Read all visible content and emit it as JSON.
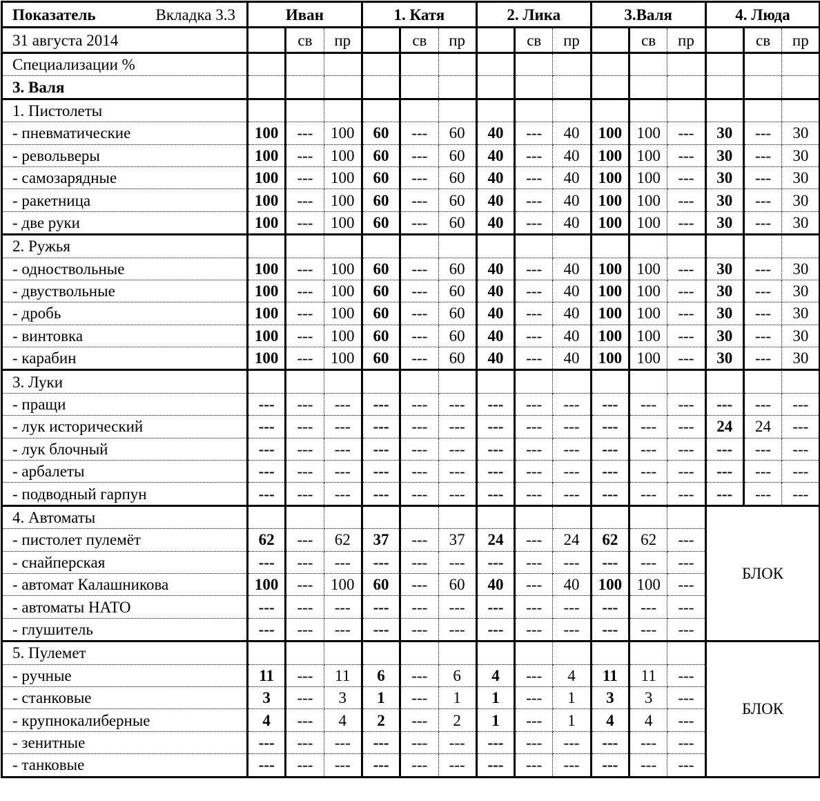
{
  "header": {
    "indicator": "Показатель",
    "tab": "Вкладка 3.3",
    "date": "31 августа 2014",
    "persons": [
      "Иван",
      "1. Катя",
      "2. Лика",
      "3.Валя",
      "4. Люда"
    ],
    "subcols": [
      "",
      "св",
      "пр"
    ]
  },
  "block_label": "БЛОК",
  "rows": [
    {
      "label": "Специализации %",
      "cells": [
        "",
        "",
        "",
        "",
        "",
        "",
        "",
        "",
        "",
        "",
        "",
        "",
        "",
        "",
        ""
      ]
    },
    {
      "label": "3. Валя",
      "bold": true,
      "cells": [
        "",
        "",
        "",
        "",
        "",
        "",
        "",
        "",
        "",
        "",
        "",
        "",
        "",
        "",
        ""
      ]
    },
    {
      "label": "1. Пистолеты",
      "group": true,
      "cells": [
        "",
        "",
        "",
        "",
        "",
        "",
        "",
        "",
        "",
        "",
        "",
        "",
        "",
        "",
        ""
      ]
    },
    {
      "label": "- пневматические",
      "cells": [
        "100",
        "---",
        "100",
        "60",
        "---",
        "60",
        "40",
        "---",
        "40",
        "100",
        "100",
        "---",
        "30",
        "---",
        "30"
      ]
    },
    {
      "label": "- револьверы",
      "cells": [
        "100",
        "---",
        "100",
        "60",
        "---",
        "60",
        "40",
        "---",
        "40",
        "100",
        "100",
        "---",
        "30",
        "---",
        "30"
      ]
    },
    {
      "label": "- самозарядные",
      "cells": [
        "100",
        "---",
        "100",
        "60",
        "---",
        "60",
        "40",
        "---",
        "40",
        "100",
        "100",
        "---",
        "30",
        "---",
        "30"
      ]
    },
    {
      "label": "- ракетница",
      "cells": [
        "100",
        "---",
        "100",
        "60",
        "---",
        "60",
        "40",
        "---",
        "40",
        "100",
        "100",
        "---",
        "30",
        "---",
        "30"
      ]
    },
    {
      "label": "- две руки",
      "cells": [
        "100",
        "---",
        "100",
        "60",
        "---",
        "60",
        "40",
        "---",
        "40",
        "100",
        "100",
        "---",
        "30",
        "---",
        "30"
      ]
    },
    {
      "label": "2. Ружья",
      "group": true,
      "cells": [
        "",
        "",
        "",
        "",
        "",
        "",
        "",
        "",
        "",
        "",
        "",
        "",
        "",
        "",
        ""
      ]
    },
    {
      "label": "- одноствольные",
      "cells": [
        "100",
        "---",
        "100",
        "60",
        "---",
        "60",
        "40",
        "---",
        "40",
        "100",
        "100",
        "---",
        "30",
        "---",
        "30"
      ]
    },
    {
      "label": "- двуствольные",
      "cells": [
        "100",
        "---",
        "100",
        "60",
        "---",
        "60",
        "40",
        "---",
        "40",
        "100",
        "100",
        "---",
        "30",
        "---",
        "30"
      ]
    },
    {
      "label": "- дробь",
      "cells": [
        "100",
        "---",
        "100",
        "60",
        "---",
        "60",
        "40",
        "---",
        "40",
        "100",
        "100",
        "---",
        "30",
        "---",
        "30"
      ]
    },
    {
      "label": "- винтовка",
      "cells": [
        "100",
        "---",
        "100",
        "60",
        "---",
        "60",
        "40",
        "---",
        "40",
        "100",
        "100",
        "---",
        "30",
        "---",
        "30"
      ]
    },
    {
      "label": "- карабин",
      "cells": [
        "100",
        "---",
        "100",
        "60",
        "---",
        "60",
        "40",
        "---",
        "40",
        "100",
        "100",
        "---",
        "30",
        "---",
        "30"
      ]
    },
    {
      "label": "3. Луки",
      "group": true,
      "cells": [
        "",
        "",
        "",
        "",
        "",
        "",
        "",
        "",
        "",
        "",
        "",
        "",
        "",
        "",
        ""
      ]
    },
    {
      "label": "- пращи",
      "cells": [
        "---",
        "---",
        "---",
        "---",
        "---",
        "---",
        "---",
        "---",
        "---",
        "---",
        "---",
        "---",
        "---",
        "---",
        "---"
      ]
    },
    {
      "label": "- лук исторический",
      "cells": [
        "---",
        "---",
        "---",
        "---",
        "---",
        "---",
        "---",
        "---",
        "---",
        "---",
        "---",
        "---",
        "24",
        "24",
        "---"
      ]
    },
    {
      "label": "- лук блочный",
      "cells": [
        "---",
        "---",
        "---",
        "---",
        "---",
        "---",
        "---",
        "---",
        "---",
        "---",
        "---",
        "---",
        "---",
        "---",
        "---"
      ]
    },
    {
      "label": "- арбалеты",
      "cells": [
        "---",
        "---",
        "---",
        "---",
        "---",
        "---",
        "---",
        "---",
        "---",
        "---",
        "---",
        "---",
        "---",
        "---",
        "---"
      ]
    },
    {
      "label": "- подводный гарпун",
      "cells": [
        "---",
        "---",
        "---",
        "---",
        "---",
        "---",
        "---",
        "---",
        "---",
        "---",
        "---",
        "---",
        "---",
        "---",
        "---"
      ]
    },
    {
      "label": "4. Автоматы",
      "group": true,
      "blockStart": true,
      "cells": [
        "",
        "",
        "",
        "",
        "",
        "",
        "",
        "",
        "",
        "",
        "",
        ""
      ]
    },
    {
      "label": "- пистолет пулемёт",
      "cells": [
        "62",
        "---",
        "62",
        "37",
        "---",
        "37",
        "24",
        "---",
        "24",
        "62",
        "62",
        "---"
      ]
    },
    {
      "label": "- снайперская",
      "cells": [
        "---",
        "---",
        "---",
        "---",
        "---",
        "---",
        "---",
        "---",
        "---",
        "---",
        "---",
        "---"
      ]
    },
    {
      "label": "- автомат Калашникова",
      "cells": [
        "100",
        "---",
        "100",
        "60",
        "---",
        "60",
        "40",
        "---",
        "40",
        "100",
        "100",
        "---"
      ]
    },
    {
      "label": "- автоматы НАТО",
      "cells": [
        "---",
        "---",
        "---",
        "---",
        "---",
        "---",
        "---",
        "---",
        "---",
        "---",
        "---",
        "---"
      ]
    },
    {
      "label": "- глушитель",
      "cells": [
        "---",
        "---",
        "---",
        "---",
        "---",
        "---",
        "---",
        "---",
        "---",
        "---",
        "---",
        "---"
      ]
    },
    {
      "label": "5. Пулемет",
      "group": true,
      "blockStart": true,
      "cells": [
        "",
        "",
        "",
        "",
        "",
        "",
        "",
        "",
        "",
        "",
        "",
        ""
      ]
    },
    {
      "label": "- ручные",
      "cells": [
        "11",
        "---",
        "11",
        "6",
        "---",
        "6",
        "4",
        "---",
        "4",
        "11",
        "11",
        "---"
      ]
    },
    {
      "label": "- станковые",
      "cells": [
        "3",
        "---",
        "3",
        "1",
        "---",
        "1",
        "1",
        "---",
        "1",
        "3",
        "3",
        "---"
      ]
    },
    {
      "label": "- крупнокалиберные",
      "cells": [
        "4",
        "---",
        "4",
        "2",
        "---",
        "2",
        "1",
        "---",
        "1",
        "4",
        "4",
        "---"
      ]
    },
    {
      "label": "- зенитные",
      "cells": [
        "---",
        "---",
        "---",
        "---",
        "---",
        "---",
        "---",
        "---",
        "---",
        "---",
        "---",
        "---"
      ]
    },
    {
      "label": "- танковые",
      "cells": [
        "---",
        "---",
        "---",
        "---",
        "---",
        "---",
        "---",
        "---",
        "---",
        "---",
        "---",
        "---"
      ]
    }
  ]
}
